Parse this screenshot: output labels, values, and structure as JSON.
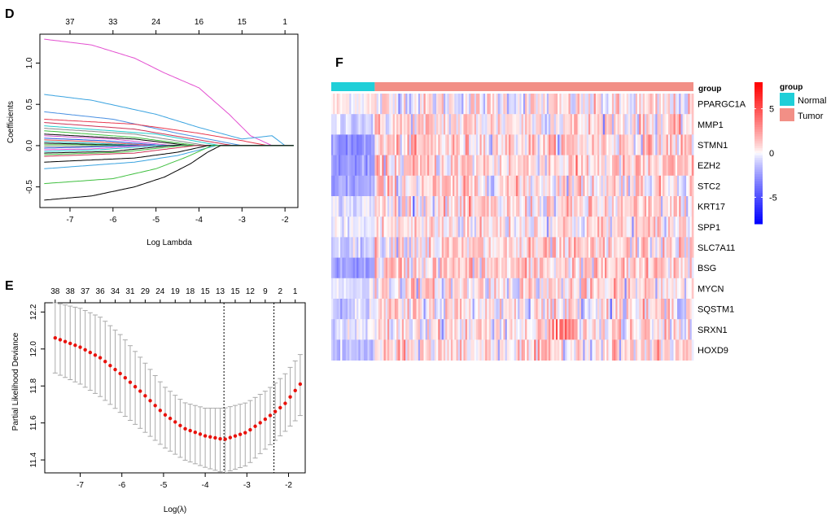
{
  "panels": {
    "D": "D",
    "E": "E",
    "F": "F"
  },
  "chart_data": [
    {
      "id": "D",
      "type": "line",
      "title": "",
      "xlabel": "Log Lambda",
      "ylabel": "Coefficients",
      "xlim": [
        -7.7,
        -1.7
      ],
      "ylim": [
        -0.75,
        1.35
      ],
      "x_ticks": [
        -7,
        -6,
        -5,
        -4,
        -3,
        -2
      ],
      "y_ticks": [
        -0.5,
        0.0,
        0.5,
        1.0
      ],
      "top_ticks": [
        "37",
        "33",
        "24",
        "16",
        "15",
        "1"
      ],
      "top_tick_x": [
        -7,
        -6,
        -5,
        -4,
        -3,
        -2
      ],
      "series": [
        {
          "color": "#e34fd0",
          "start": 1.29,
          "zero_at": -2.3,
          "mid": [
            [
              -6.5,
              1.22
            ],
            [
              -5.5,
              1.06
            ],
            [
              -4.8,
              0.88
            ],
            [
              -4.0,
              0.7
            ],
            [
              -3.3,
              0.38
            ],
            [
              -2.8,
              0.12
            ]
          ]
        },
        {
          "color": "#3aa3e0",
          "start": 0.62,
          "zero_at": -2.0,
          "mid": [
            [
              -6.5,
              0.55
            ],
            [
              -5.0,
              0.38
            ],
            [
              -4.0,
              0.22
            ],
            [
              -3.0,
              0.08
            ],
            [
              -2.3,
              0.12
            ]
          ]
        },
        {
          "color": "#4a90e2",
          "start": 0.41,
          "zero_at": -3.0,
          "mid": [
            [
              -6.0,
              0.32
            ],
            [
              -4.5,
              0.15
            ]
          ]
        },
        {
          "color": "#e8384f",
          "start": 0.32,
          "zero_at": -2.4,
          "mid": [
            [
              -5.5,
              0.26
            ],
            [
              -4.0,
              0.15
            ],
            [
              -3.0,
              0.06
            ]
          ]
        },
        {
          "color": "#cc3355",
          "start": 0.28,
          "zero_at": -3.2,
          "mid": [
            [
              -5.5,
              0.2
            ]
          ]
        },
        {
          "color": "#22cccc",
          "start": 0.24,
          "zero_at": -3.5,
          "mid": [
            [
              -5.0,
              0.14
            ]
          ]
        },
        {
          "color": "#888888",
          "start": 0.21,
          "zero_at": -3.8,
          "mid": [
            [
              -5.5,
              0.14
            ]
          ]
        },
        {
          "color": "#3fbf3f",
          "start": 0.18,
          "zero_at": -4.0,
          "mid": [
            [
              -5.5,
              0.1
            ]
          ]
        },
        {
          "color": "#000000",
          "start": 0.14,
          "zero_at": -4.2,
          "mid": [
            [
              -5.5,
              0.08
            ]
          ]
        },
        {
          "color": "#d04fd0",
          "start": 0.12,
          "zero_at": -4.6,
          "mid": [
            [
              -6.0,
              0.08
            ]
          ]
        },
        {
          "color": "#2255dd",
          "start": 0.09,
          "zero_at": -4.8,
          "mid": [
            [
              -6.2,
              0.06
            ]
          ]
        },
        {
          "color": "#e34f4f",
          "start": 0.07,
          "zero_at": -5.0,
          "mid": [
            [
              -6.5,
              0.05
            ]
          ]
        },
        {
          "color": "#22bbbb",
          "start": 0.05,
          "zero_at": -5.2,
          "mid": [
            [
              -6.5,
              0.03
            ]
          ]
        },
        {
          "color": "#000000",
          "start": 0.03,
          "zero_at": -5.4,
          "mid": [
            [
              -6.8,
              0.02
            ]
          ]
        },
        {
          "color": "#3fbf3f",
          "start": 0.01,
          "zero_at": -5.6,
          "mid": [
            [
              -6.8,
              0.01
            ]
          ]
        },
        {
          "color": "#888888",
          "start": -0.01,
          "zero_at": -5.8,
          "mid": [
            [
              -6.8,
              -0.01
            ]
          ]
        },
        {
          "color": "#2255dd",
          "start": -0.03,
          "zero_at": -5.6,
          "mid": [
            [
              -6.8,
              -0.02
            ]
          ]
        },
        {
          "color": "#e34fd0",
          "start": -0.05,
          "zero_at": -5.3,
          "mid": [
            [
              -6.5,
              -0.04
            ]
          ]
        },
        {
          "color": "#22cccc",
          "start": -0.07,
          "zero_at": -5.0,
          "mid": [
            [
              -6.3,
              -0.05
            ]
          ]
        },
        {
          "color": "#000000",
          "start": -0.09,
          "zero_at": -4.7,
          "mid": [
            [
              -6.0,
              -0.07
            ]
          ]
        },
        {
          "color": "#3fbf3f",
          "start": -0.11,
          "zero_at": -4.4,
          "mid": [
            [
              -5.8,
              -0.08
            ]
          ]
        },
        {
          "color": "#cc3355",
          "start": -0.13,
          "zero_at": -4.1,
          "mid": [
            [
              -5.5,
              -0.09
            ]
          ]
        },
        {
          "color": "#000000",
          "start": -0.2,
          "zero_at": -3.8,
          "mid": [
            [
              -5.5,
              -0.15
            ],
            [
              -4.5,
              -0.08
            ]
          ]
        },
        {
          "color": "#3aa3e0",
          "start": -0.28,
          "zero_at": -3.6,
          "mid": [
            [
              -5.5,
              -0.2
            ],
            [
              -4.5,
              -0.12
            ]
          ]
        },
        {
          "color": "#3fbf3f",
          "start": -0.46,
          "zero_at": -3.7,
          "mid": [
            [
              -6.0,
              -0.4
            ],
            [
              -5.0,
              -0.28
            ],
            [
              -4.3,
              -0.14
            ]
          ]
        },
        {
          "color": "#000000",
          "start": -0.66,
          "zero_at": -3.5,
          "mid": [
            [
              -6.5,
              -0.61
            ],
            [
              -5.5,
              -0.5
            ],
            [
              -4.8,
              -0.38
            ],
            [
              -4.2,
              -0.22
            ],
            [
              -3.8,
              -0.08
            ]
          ]
        }
      ]
    },
    {
      "id": "E",
      "type": "scatter",
      "title": "",
      "xlabel": "Log(λ)",
      "ylabel": "Partial Likelihood Deviance",
      "xlim": [
        -7.85,
        -1.6
      ],
      "ylim": [
        11.33,
        12.25
      ],
      "x_ticks": [
        -7,
        -6,
        -5,
        -4,
        -3,
        -2
      ],
      "y_ticks": [
        11.4,
        11.6,
        11.8,
        12.0,
        12.2
      ],
      "top_ticks": [
        "38",
        "38",
        "37",
        "36",
        "34",
        "31",
        "29",
        "24",
        "19",
        "18",
        "15",
        "13",
        "15",
        "12",
        "9",
        "2",
        "1"
      ],
      "x_start": -7.6,
      "x_end": -1.72,
      "n_points": 50,
      "min_lines": [
        -3.55,
        -2.35
      ],
      "mean_curve": [
        [
          -7.6,
          12.06
        ],
        [
          -7.0,
          12.01
        ],
        [
          -6.5,
          11.95
        ],
        [
          -6.0,
          11.86
        ],
        [
          -5.5,
          11.76
        ],
        [
          -5.0,
          11.65
        ],
        [
          -4.5,
          11.57
        ],
        [
          -4.0,
          11.53
        ],
        [
          -3.55,
          11.51
        ],
        [
          -3.0,
          11.55
        ],
        [
          -2.5,
          11.63
        ],
        [
          -2.1,
          11.7
        ],
        [
          -1.72,
          11.81
        ]
      ],
      "upper_curve": [
        [
          -7.6,
          12.25
        ],
        [
          -7.0,
          12.22
        ],
        [
          -6.5,
          12.17
        ],
        [
          -6.0,
          12.07
        ],
        [
          -5.5,
          11.94
        ],
        [
          -5.0,
          11.8
        ],
        [
          -4.5,
          11.71
        ],
        [
          -4.0,
          11.68
        ],
        [
          -3.55,
          11.68
        ],
        [
          -3.0,
          11.71
        ],
        [
          -2.5,
          11.78
        ],
        [
          -2.1,
          11.86
        ],
        [
          -1.72,
          11.97
        ]
      ],
      "lower_curve": [
        [
          -7.6,
          11.87
        ],
        [
          -7.0,
          11.81
        ],
        [
          -6.5,
          11.74
        ],
        [
          -6.0,
          11.65
        ],
        [
          -5.5,
          11.56
        ],
        [
          -5.0,
          11.47
        ],
        [
          -4.5,
          11.4
        ],
        [
          -4.0,
          11.36
        ],
        [
          -3.55,
          11.33
        ],
        [
          -3.0,
          11.37
        ],
        [
          -2.5,
          11.47
        ],
        [
          -2.1,
          11.55
        ],
        [
          -1.72,
          11.64
        ]
      ]
    },
    {
      "id": "F",
      "type": "heatmap",
      "title": "",
      "annotation_label": "group",
      "genes": [
        "PPARGC1A",
        "MMP1",
        "STMN1",
        "EZH2",
        "STC2",
        "KRT17",
        "SPP1",
        "SLC7A11",
        "BSG",
        "MYCN",
        "SQSTM1",
        "SRXN1",
        "HOXD9"
      ],
      "groups": [
        {
          "name": "Normal",
          "color": "#1fcfd8",
          "fraction": 0.12,
          "gene_means": [
            0.3,
            -0.8,
            -2.8,
            -2.6,
            -2.2,
            -0.6,
            -0.4,
            -0.8,
            -2.4,
            -0.5,
            -0.9,
            -0.6,
            -1.6
          ]
        },
        {
          "name": "Tumor",
          "color": "#f28f86",
          "fraction": 0.88,
          "gene_means": [
            0.1,
            0.6,
            0.9,
            0.8,
            0.7,
            0.5,
            0.5,
            0.6,
            0.9,
            0.5,
            0.4,
            0.4,
            0.6
          ]
        }
      ],
      "n_samples": 200,
      "color_scale": {
        "min": -8,
        "max": 8,
        "low": "#0000ff",
        "mid": "#ffffff",
        "high": "#ff0000"
      },
      "colorbar_ticks": [
        5,
        0,
        -5
      ],
      "legend_title": "group"
    }
  ]
}
